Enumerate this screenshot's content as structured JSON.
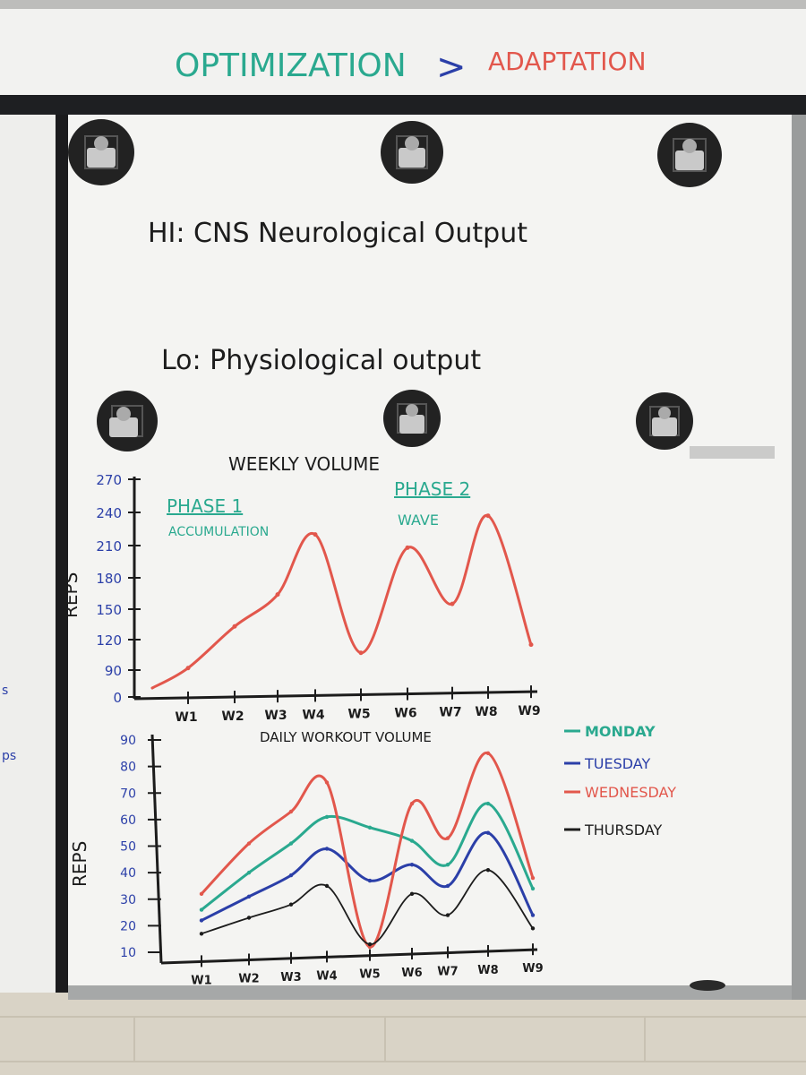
{
  "header": {
    "left_text": "OPTIMIZATION",
    "arrow": ">",
    "right_text": "ADAPTATION"
  },
  "notes": {
    "hi": "HI:  CNS  Neurological  Output",
    "lo": "Lo:  Physiological  output"
  },
  "colors": {
    "wall": "#d9d3c6",
    "board": "#f4f4f2",
    "frame": "#9a9c9c",
    "teal": "#2aa98f",
    "blue": "#2b3fa8",
    "red": "#e2574c",
    "black": "#1c1c1c"
  },
  "chart_data": [
    {
      "type": "line",
      "title": "WEEKLY VOLUME",
      "ylabel": "REPS",
      "xlabel": "",
      "x": [
        "W1",
        "W2",
        "W3",
        "W4",
        "W5",
        "W6",
        "W7",
        "W8",
        "W9"
      ],
      "yticks": [
        0,
        90,
        120,
        150,
        180,
        210,
        240,
        270
      ],
      "ytick_labels": [
        "0",
        "90",
        "120",
        "150",
        "180",
        "210",
        "240",
        "270"
      ],
      "ylim": [
        0,
        270
      ],
      "phase_labels": [
        {
          "title": "PHASE 1",
          "subtitle": "ACCUMULATION"
        },
        {
          "title": "PHASE 2",
          "subtitle": "WAVE"
        }
      ],
      "series": [
        {
          "color": "#e2574c",
          "values": [
            92,
            133,
            164,
            220,
            107,
            208,
            155,
            237,
            115
          ]
        }
      ]
    },
    {
      "type": "line",
      "title": "DAILY WORKOUT VOLUME",
      "ylabel": "REPS",
      "xlabel": "",
      "x": [
        "W1",
        "W2",
        "W3",
        "W4",
        "W5",
        "W6",
        "W7",
        "W8",
        "W9"
      ],
      "yticks": [
        10,
        20,
        30,
        40,
        50,
        60,
        70,
        80,
        90
      ],
      "ytick_labels": [
        "10",
        "20",
        "30",
        "40",
        "50",
        "60",
        "70",
        "80",
        "90"
      ],
      "ylim": [
        10,
        90
      ],
      "legend_position": "top-right",
      "series": [
        {
          "name": "MONDAY",
          "color": "#2aa98f",
          "values": [
            26,
            40,
            51,
            61,
            57,
            52,
            43,
            66,
            34
          ]
        },
        {
          "name": "TUESDAY",
          "color": "#2b3fa8",
          "values": [
            22,
            31,
            39,
            49,
            37,
            43,
            35,
            55,
            24
          ]
        },
        {
          "name": "WEDNESDAY",
          "color": "#e2574c",
          "values": [
            32,
            51,
            63,
            74,
            12,
            66,
            53,
            85,
            38
          ]
        },
        {
          "name": "THURSDAY",
          "color": "#1c1c1c",
          "values": [
            17,
            23,
            28,
            35,
            13,
            32,
            24,
            41,
            19
          ]
        }
      ]
    }
  ]
}
